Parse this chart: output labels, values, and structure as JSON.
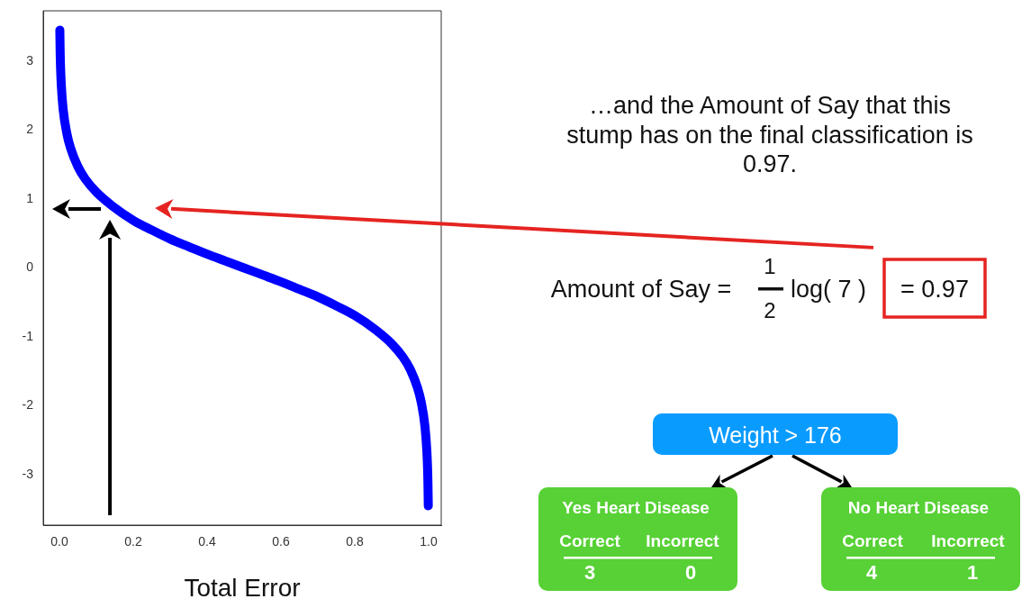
{
  "chart_data": {
    "type": "line",
    "xlabel": "Total Error",
    "x": [
      0.001,
      0.002,
      0.003,
      0.005,
      0.01,
      0.02,
      0.03,
      0.05,
      0.07,
      0.1,
      0.143,
      0.2,
      0.25,
      0.3,
      0.35,
      0.4,
      0.45,
      0.5,
      0.55,
      0.6,
      0.65,
      0.7,
      0.75,
      0.8,
      0.857,
      0.9,
      0.93,
      0.95,
      0.97,
      0.98,
      0.99,
      0.995,
      0.997,
      0.998,
      0.999
    ],
    "series": [
      {
        "color": "#0000ff",
        "values": [
          3.45,
          3.1,
          2.9,
          2.65,
          2.3,
          1.95,
          1.74,
          1.47,
          1.29,
          1.1,
          0.9,
          0.69,
          0.55,
          0.42,
          0.31,
          0.2,
          0.1,
          0,
          -0.1,
          -0.2,
          -0.31,
          -0.42,
          -0.55,
          -0.69,
          -0.9,
          -1.1,
          -1.29,
          -1.47,
          -1.74,
          -1.95,
          -2.3,
          -2.65,
          -2.9,
          -3.1,
          -3.45
        ]
      }
    ],
    "xlim": [
      -0.044,
      1.034
    ],
    "xticks": [
      {
        "value": 0,
        "label": "0.0"
      },
      0.2,
      0.4,
      0.6,
      0.8,
      {
        "value": 1,
        "label": "1.0"
      }
    ],
    "ylim": [
      -3.73,
      3.73
    ],
    "yticks": [
      -3,
      -2,
      -1,
      0,
      1,
      2,
      3
    ],
    "grid": false,
    "legend": false,
    "marker": "none",
    "line_style": "solid",
    "annotations": [
      "…and the Amount of Say that this stump has on the final classification is 0.97.",
      "Amount of Say =",
      "1",
      "2",
      "log( 7 )",
      "= 0.97",
      "Weight > 176",
      "Yes Heart Disease",
      "Correct",
      "Incorrect",
      "3",
      "0",
      "No Heart Disease",
      "Correct",
      "Incorrect",
      "4",
      "1"
    ]
  }
}
